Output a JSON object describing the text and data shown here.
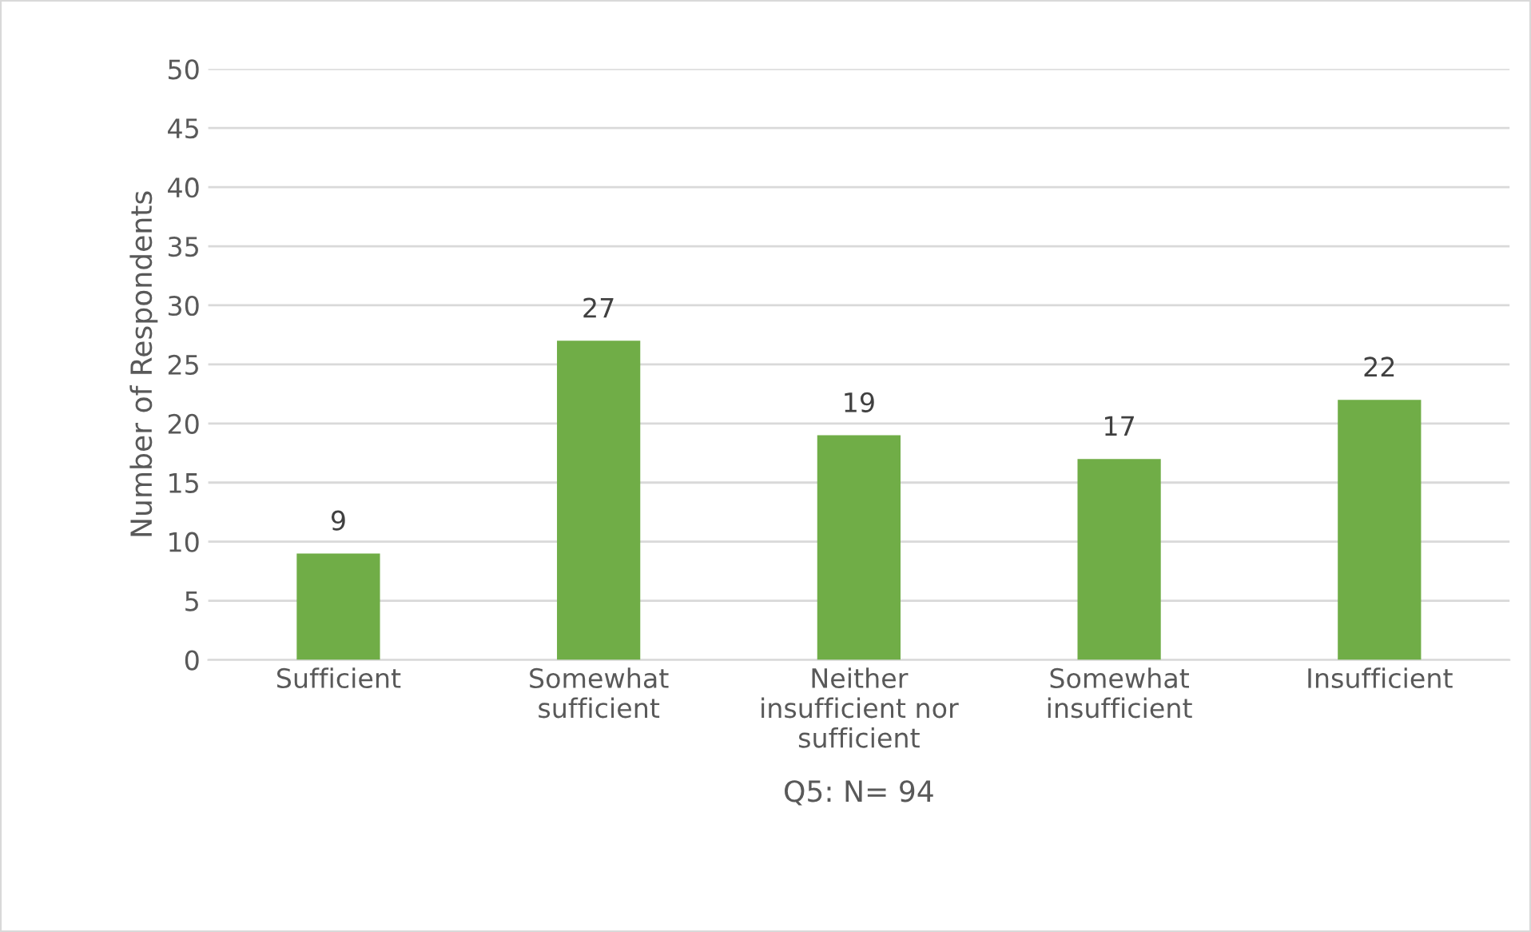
{
  "chart_data": {
    "type": "bar",
    "categories": [
      "Sufficient",
      "Somewhat\nsufficient",
      "Neither\ninsufficient nor\nsufficient",
      "Somewhat\ninsufficient",
      "Insufficient"
    ],
    "values": [
      9,
      27,
      19,
      17,
      22
    ],
    "color": "#70ad47",
    "xlabel": "Q5: N= 94",
    "ylabel": "Number of Respondents",
    "ylim": [
      0,
      50
    ],
    "yticks": [
      0,
      5,
      10,
      15,
      20,
      25,
      30,
      35,
      40,
      45,
      50
    ],
    "grid": "y",
    "data_labels": true
  }
}
